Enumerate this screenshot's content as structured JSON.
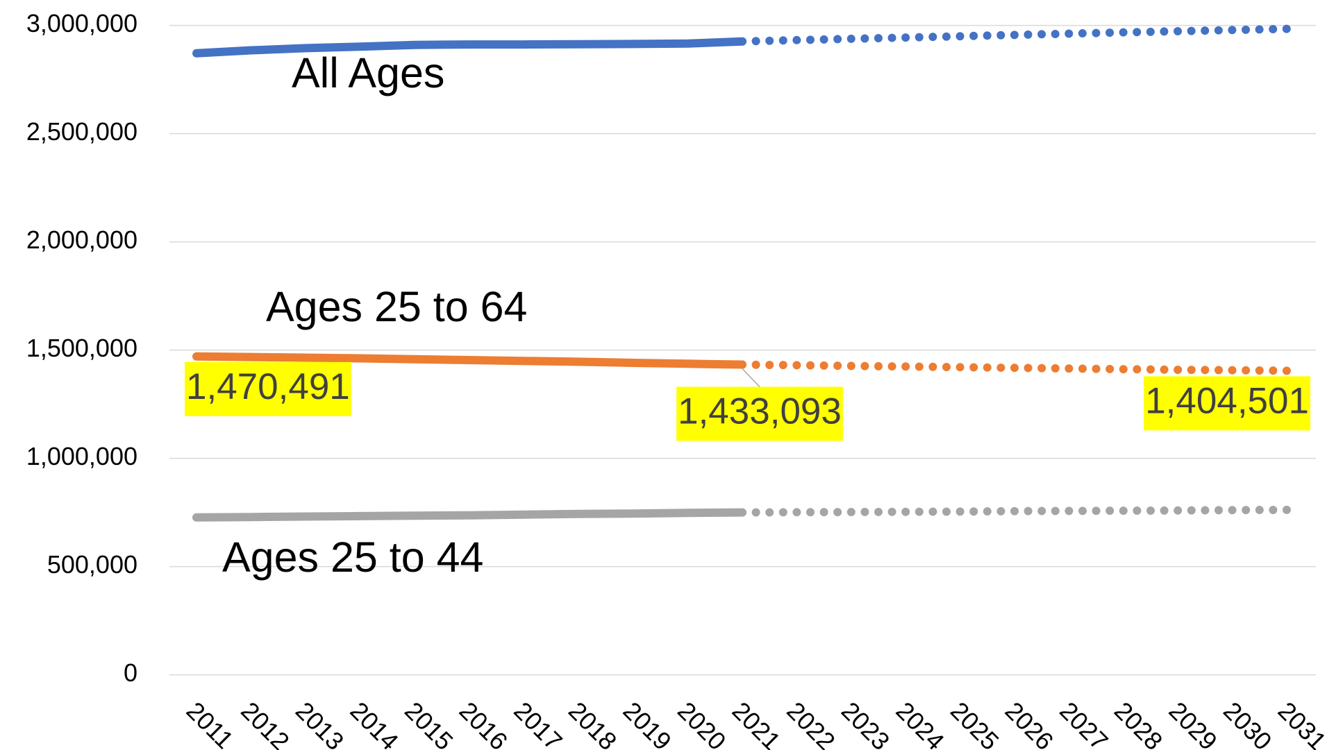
{
  "chart_data": {
    "type": "line",
    "x": [
      2011,
      2012,
      2013,
      2014,
      2015,
      2016,
      2017,
      2018,
      2019,
      2020,
      2021,
      2022,
      2023,
      2024,
      2025,
      2026,
      2027,
      2028,
      2029,
      2030,
      2031
    ],
    "xlim": [
      2011,
      2031
    ],
    "ylim": [
      0,
      3000000
    ],
    "yticks": [
      0,
      {
        "value": 500000,
        "label": "500,000"
      },
      {
        "value": 1000000,
        "label": "1,000,000"
      },
      {
        "value": 1500000,
        "label": "1,500,000"
      },
      {
        "value": 2000000,
        "label": "2,000,000"
      },
      {
        "value": 2500000,
        "label": "2,500,000"
      },
      {
        "value": 3000000,
        "label": "3,000,000"
      }
    ],
    "grid": true,
    "projection_start": 2021,
    "series": [
      {
        "name": "All Ages",
        "color": "#4472c4",
        "values": [
          2871000,
          2885000,
          2895000,
          2902000,
          2910000,
          2912000,
          2912000,
          2913000,
          2914000,
          2916000,
          2926000,
          2932000,
          2938000,
          2944000,
          2950000,
          2956000,
          2962000,
          2968000,
          2973000,
          2979000,
          2984000
        ]
      },
      {
        "name": "Ages 25 to 64",
        "color": "#ed7d31",
        "values": [
          1470491,
          1468000,
          1465000,
          1462000,
          1458000,
          1454000,
          1450000,
          1446000,
          1441000,
          1437000,
          1433093,
          1430000,
          1427000,
          1424000,
          1421000,
          1418000,
          1415000,
          1412000,
          1409000,
          1407000,
          1404501
        ],
        "value_labels": [
          "1,470,491",
          null,
          null,
          null,
          null,
          null,
          null,
          null,
          null,
          null,
          "1,433,093",
          null,
          null,
          null,
          null,
          null,
          null,
          null,
          null,
          null,
          "1,404,501"
        ]
      },
      {
        "name": "Ages 25 to 44",
        "color": "#a5a5a5",
        "values": [
          727000,
          729000,
          731000,
          733000,
          735000,
          737000,
          740000,
          743000,
          745000,
          748000,
          750000,
          751000,
          752000,
          753000,
          754000,
          756000,
          757000,
          758000,
          759000,
          761000,
          762000
        ]
      }
    ]
  }
}
